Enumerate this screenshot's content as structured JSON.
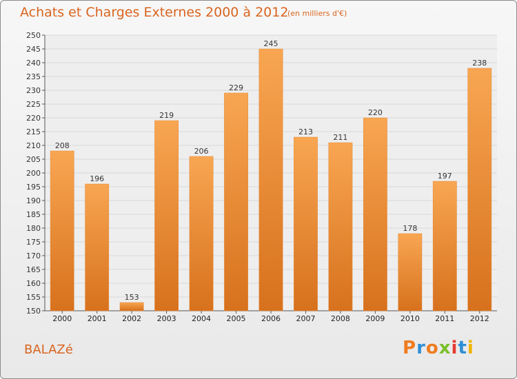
{
  "header": {
    "title": "Achats et Charges Externes 2000 à 2012",
    "unit": "(en milliers d'€)"
  },
  "footer": {
    "commune": "BALAZé",
    "logo": "Proxiti"
  },
  "colors": {
    "bar_light": "#f8a652",
    "bar_dark": "#d7711d",
    "title": "#d9641f",
    "grid": "#d8d8d8"
  },
  "chart_data": {
    "type": "bar",
    "title": "Achats et Charges Externes 2000 à 2012",
    "subtitle": "(en milliers d'€)",
    "categories": [
      "2000",
      "2001",
      "2002",
      "2003",
      "2004",
      "2005",
      "2006",
      "2007",
      "2008",
      "2009",
      "2010",
      "2011",
      "2012"
    ],
    "values": [
      208,
      196,
      153,
      219,
      206,
      229,
      245,
      213,
      211,
      220,
      178,
      197,
      238
    ],
    "ylim": [
      150,
      250
    ],
    "ytick_step": 5,
    "grid": true,
    "data_labels": true
  }
}
